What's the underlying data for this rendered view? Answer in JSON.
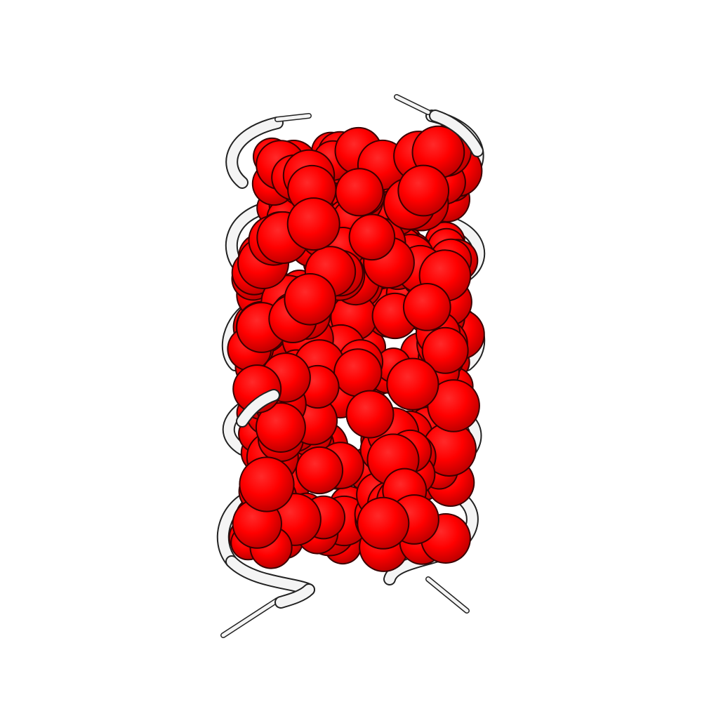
{
  "scene": {
    "background_color": "#ffffff",
    "sphere_color": "#ff0000",
    "sphere_shadow_color": "#b00000",
    "sphere_outline_color": "#3a0000",
    "ribbon_color": "#f4f4f4",
    "ribbon_outline_color": "#222222"
  }
}
